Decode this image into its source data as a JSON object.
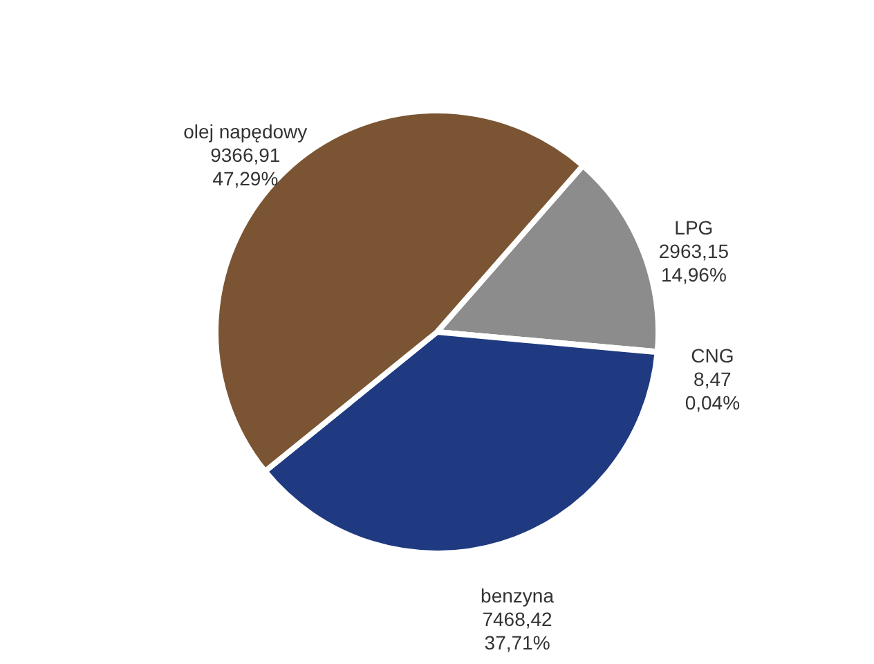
{
  "chart_data": {
    "type": "pie",
    "categories": [
      "LPG",
      "CNG",
      "benzyna",
      "olej napędowy"
    ],
    "values": [
      2963.15,
      8.47,
      7468.42,
      9366.91
    ],
    "colors": [
      "#8c8c8c",
      "#9aab3c",
      "#1f3a80",
      "#7b5533"
    ],
    "value_labels": [
      "2963,15\n14,96%",
      "8,47\n0,04%",
      "7468,42\n37,71%",
      "9366,91\n47,29%"
    ],
    "legend": false
  }
}
